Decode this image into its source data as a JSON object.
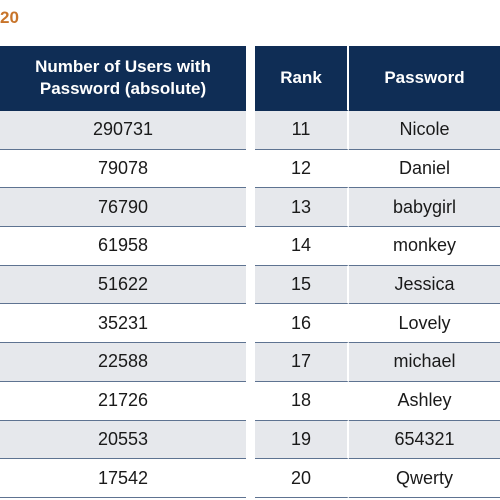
{
  "header_fragment": "20",
  "left_table": {
    "column_header": "Number of Users with Password (absolute)",
    "values": [
      "290731",
      "79078",
      "76790",
      "61958",
      "51622",
      "35231",
      "22588",
      "21726",
      "20553",
      "17542"
    ]
  },
  "right_table": {
    "rank_header": "Rank",
    "password_header": "Password",
    "rows": [
      {
        "rank": "11",
        "password": "Nicole"
      },
      {
        "rank": "12",
        "password": "Daniel"
      },
      {
        "rank": "13",
        "password": "babygirl"
      },
      {
        "rank": "14",
        "password": "monkey"
      },
      {
        "rank": "15",
        "password": "Jessica"
      },
      {
        "rank": "16",
        "password": "Lovely"
      },
      {
        "rank": "17",
        "password": "michael"
      },
      {
        "rank": "18",
        "password": "Ashley"
      },
      {
        "rank": "19",
        "password": "654321"
      },
      {
        "rank": "20",
        "password": "Qwerty"
      }
    ]
  },
  "colors": {
    "header_bg": "#0f2d55",
    "accent_orange": "#c8742a",
    "row_shaded": "#e6e8ec",
    "row_border": "#5e7391"
  }
}
